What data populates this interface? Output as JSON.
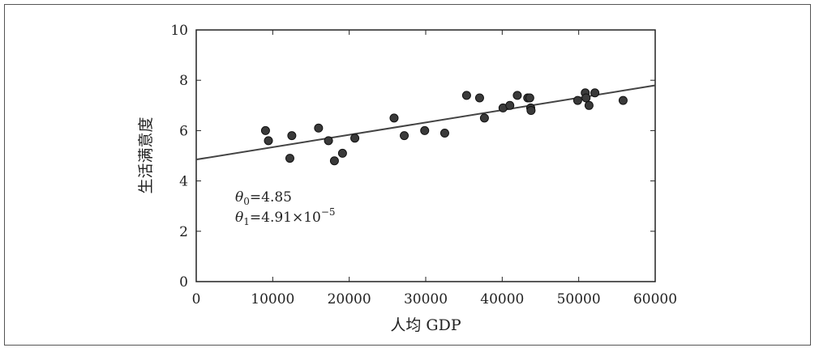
{
  "chart_data": {
    "type": "scatter",
    "xlabel": "人均 GDP",
    "ylabel": "生活满意度",
    "xlim": [
      0,
      60000
    ],
    "ylim": [
      0,
      10
    ],
    "x_ticks": [
      "0",
      "10000",
      "20000",
      "30000",
      "40000",
      "50000",
      "60000"
    ],
    "y_ticks": [
      "0",
      "2",
      "4",
      "6",
      "8",
      "10"
    ],
    "grid": false,
    "points": [
      {
        "x": 9055,
        "y": 6.0
      },
      {
        "x": 9437,
        "y": 5.6
      },
      {
        "x": 12240,
        "y": 4.9
      },
      {
        "x": 12495,
        "y": 5.8
      },
      {
        "x": 15991,
        "y": 6.1
      },
      {
        "x": 17288,
        "y": 5.6
      },
      {
        "x": 18064,
        "y": 4.8
      },
      {
        "x": 19121,
        "y": 5.1
      },
      {
        "x": 20732,
        "y": 5.7
      },
      {
        "x": 25864,
        "y": 6.5
      },
      {
        "x": 27195,
        "y": 5.8
      },
      {
        "x": 29866,
        "y": 6.0
      },
      {
        "x": 32485,
        "y": 5.9
      },
      {
        "x": 35343,
        "y": 7.4
      },
      {
        "x": 37044,
        "y": 7.3
      },
      {
        "x": 37675,
        "y": 6.5
      },
      {
        "x": 40106,
        "y": 6.9
      },
      {
        "x": 40996,
        "y": 7.0
      },
      {
        "x": 41973,
        "y": 7.4
      },
      {
        "x": 43331,
        "y": 7.3
      },
      {
        "x": 43603,
        "y": 7.3
      },
      {
        "x": 43724,
        "y": 6.9
      },
      {
        "x": 43770,
        "y": 6.8
      },
      {
        "x": 49866,
        "y": 7.2
      },
      {
        "x": 50855,
        "y": 7.5
      },
      {
        "x": 50962,
        "y": 7.3
      },
      {
        "x": 51350,
        "y": 7.0
      },
      {
        "x": 52114,
        "y": 7.5
      },
      {
        "x": 55805,
        "y": 7.2
      }
    ],
    "fit_line": {
      "theta0": 4.85,
      "theta1": 4.91e-05
    },
    "annotations": {
      "theta0_symbol": "θ",
      "theta0_sub": "0",
      "theta0_eq": "=4.85",
      "theta1_symbol": "θ",
      "theta1_sub": "1",
      "theta1_eq": "=4.91×10",
      "theta1_exp": "−5"
    },
    "colors": {
      "point_fill": "#3a3a3a",
      "point_stroke": "#111111",
      "line": "#444444",
      "axis": "#222222"
    }
  }
}
